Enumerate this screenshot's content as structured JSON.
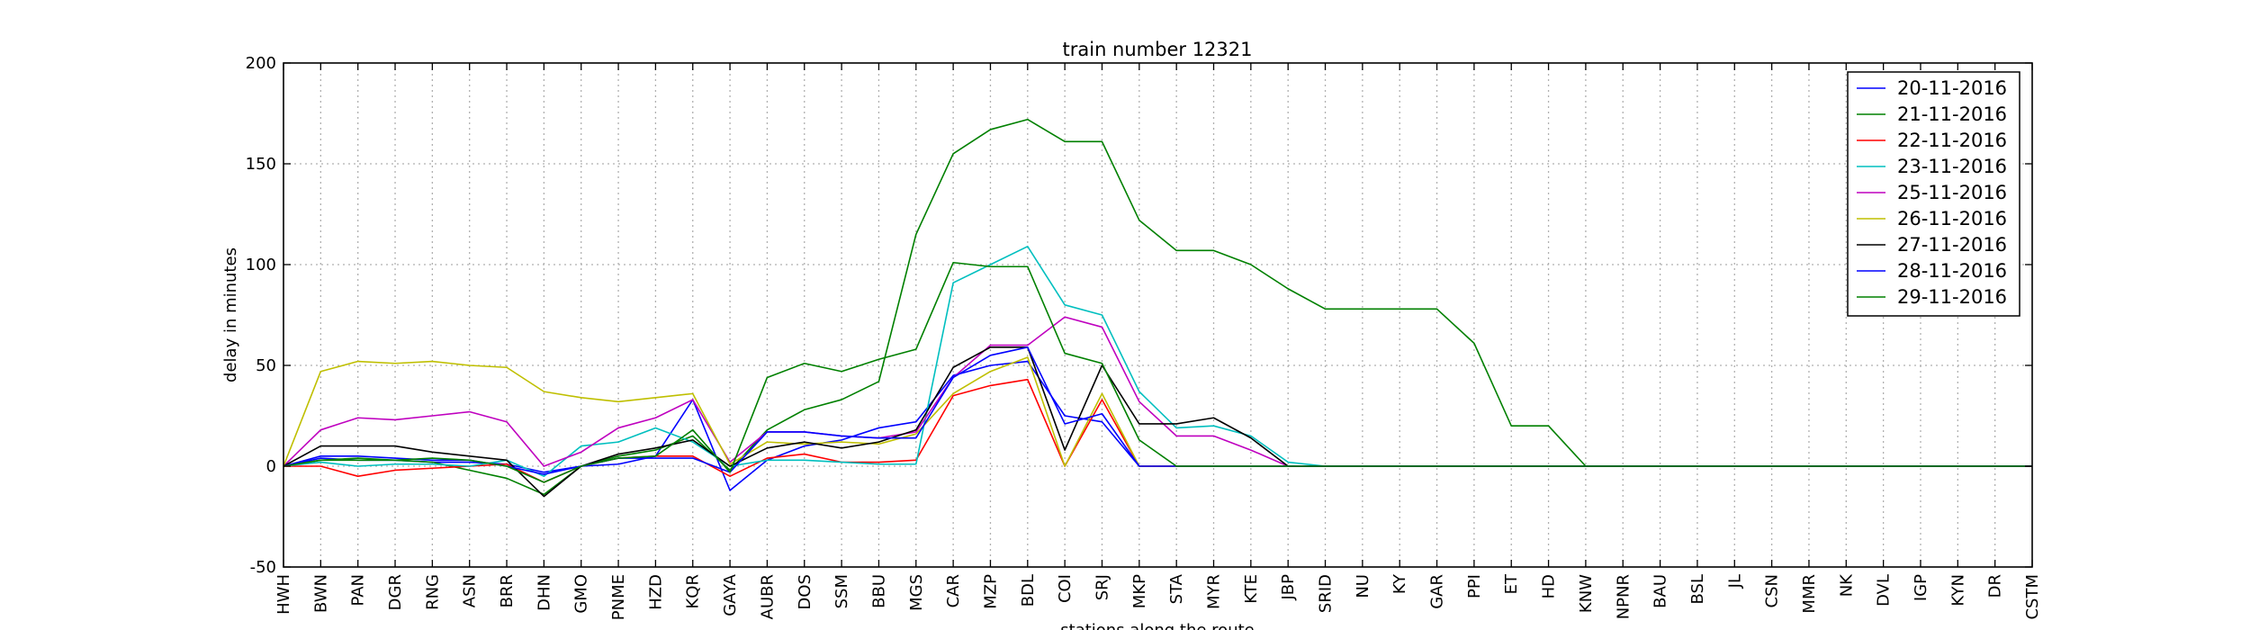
{
  "chart_data": {
    "type": "line",
    "title": "train number 12321",
    "xlabel": "stations along the route",
    "ylabel": "delay in minutes",
    "ylim": [
      -50,
      200
    ],
    "yticks": [
      -50,
      0,
      50,
      100,
      150,
      200
    ],
    "grid": true,
    "legend_position": "top-right",
    "categories": [
      "HWH",
      "BWN",
      "PAN",
      "DGR",
      "RNG",
      "ASN",
      "BRR",
      "DHN",
      "GMO",
      "PNME",
      "HZD",
      "KQR",
      "GAYA",
      "AUBR",
      "DOS",
      "SSM",
      "BBU",
      "MGS",
      "CAR",
      "MZP",
      "BDL",
      "COI",
      "SRJ",
      "MKP",
      "STA",
      "MYR",
      "KTE",
      "JBP",
      "SRID",
      "NU",
      "KY",
      "GAR",
      "PPI",
      "ET",
      "HD",
      "KNW",
      "NPNR",
      "BAU",
      "BSL",
      "JL",
      "CSN",
      "MMR",
      "NK",
      "DVL",
      "IGP",
      "KYN",
      "DR",
      "CSTM"
    ],
    "series": [
      {
        "name": "20-11-2016",
        "color": "#0000ff",
        "values": [
          0,
          4,
          3,
          3,
          2,
          2,
          1,
          -3,
          0,
          1,
          5,
          33,
          -12,
          3,
          10,
          13,
          19,
          22,
          45,
          50,
          52,
          25,
          22,
          0,
          0,
          0,
          0,
          0,
          0,
          0,
          0,
          0,
          0,
          0,
          0,
          0,
          0,
          0,
          0,
          0,
          0,
          0,
          0,
          0,
          0,
          0,
          0,
          0
        ]
      },
      {
        "name": "21-11-2016",
        "color": "#008000",
        "values": [
          0,
          3,
          4,
          3,
          2,
          -2,
          -6,
          -14,
          0,
          5,
          8,
          15,
          -2,
          18,
          28,
          33,
          42,
          115,
          155,
          167,
          172,
          161,
          161,
          122,
          107,
          107,
          100,
          88,
          78,
          78,
          78,
          78,
          61,
          20,
          20,
          0,
          0,
          0,
          0,
          0,
          0,
          0,
          0,
          0,
          0,
          0,
          0,
          0
        ]
      },
      {
        "name": "22-11-2016",
        "color": "#ff0000",
        "values": [
          0,
          0,
          -5,
          -2,
          -1,
          0,
          1,
          -8,
          0,
          4,
          5,
          5,
          -5,
          4,
          6,
          2,
          2,
          3,
          35,
          40,
          43,
          0,
          33,
          0,
          0,
          0,
          0,
          0,
          0,
          0,
          0,
          0,
          0,
          0,
          0,
          0,
          0,
          0,
          0,
          0,
          0,
          0,
          0,
          0,
          0,
          0,
          0,
          0
        ]
      },
      {
        "name": "23-11-2016",
        "color": "#00bfbf",
        "values": [
          0,
          2,
          0,
          1,
          1,
          0,
          3,
          -5,
          10,
          12,
          19,
          12,
          0,
          3,
          3,
          2,
          1,
          1,
          91,
          100,
          109,
          80,
          75,
          37,
          19,
          20,
          15,
          2,
          0,
          0,
          0,
          0,
          0,
          0,
          0,
          0,
          0,
          0,
          0,
          0,
          0,
          0,
          0,
          0,
          0,
          0,
          0,
          0
        ]
      },
      {
        "name": "25-11-2016",
        "color": "#bf00bf",
        "values": [
          0,
          18,
          24,
          23,
          25,
          27,
          22,
          0,
          7,
          19,
          24,
          33,
          2,
          17,
          17,
          15,
          14,
          17,
          44,
          60,
          60,
          74,
          69,
          32,
          15,
          15,
          8,
          0,
          0,
          0,
          0,
          0,
          0,
          0,
          0,
          0,
          0,
          0,
          0,
          0,
          0,
          0,
          0,
          0,
          0,
          0,
          0,
          0
        ]
      },
      {
        "name": "26-11-2016",
        "color": "#bfbf00",
        "values": [
          0,
          47,
          52,
          51,
          52,
          50,
          49,
          37,
          34,
          32,
          34,
          36,
          1,
          12,
          11,
          12,
          11,
          16,
          36,
          47,
          54,
          0,
          36,
          0,
          0,
          0,
          0,
          0,
          0,
          0,
          0,
          0,
          0,
          0,
          0,
          0,
          0,
          0,
          0,
          0,
          0,
          0,
          0,
          0,
          0,
          0,
          0,
          0
        ]
      },
      {
        "name": "27-11-2016",
        "color": "#000000",
        "values": [
          0,
          10,
          10,
          10,
          7,
          5,
          3,
          -15,
          0,
          6,
          9,
          13,
          0,
          9,
          12,
          9,
          12,
          18,
          49,
          59,
          59,
          8,
          50,
          21,
          21,
          24,
          14,
          0,
          0,
          0,
          0,
          0,
          0,
          0,
          0,
          0,
          0,
          0,
          0,
          0,
          0,
          0,
          0,
          0,
          0,
          0,
          0,
          0
        ]
      },
      {
        "name": "28-11-2016",
        "color": "#0000ff",
        "values": [
          0,
          5,
          5,
          4,
          3,
          3,
          0,
          -4,
          0,
          4,
          4,
          4,
          -3,
          17,
          17,
          15,
          14,
          14,
          44,
          55,
          59,
          21,
          26,
          0,
          0,
          0,
          0,
          0,
          0,
          0,
          0,
          0,
          0,
          0,
          0,
          0,
          0,
          0,
          0,
          0,
          0,
          0,
          0,
          0,
          0,
          0,
          0,
          0
        ]
      },
      {
        "name": "29-11-2016",
        "color": "#008000",
        "values": [
          0,
          3,
          3,
          3,
          4,
          3,
          0,
          -8,
          0,
          4,
          5,
          18,
          -3,
          44,
          51,
          47,
          53,
          58,
          101,
          99,
          99,
          56,
          51,
          13,
          0,
          0,
          0,
          0,
          0,
          0,
          0,
          0,
          0,
          0,
          0,
          0,
          0,
          0,
          0,
          0,
          0,
          0,
          0,
          0,
          0,
          0,
          0,
          0
        ]
      }
    ]
  }
}
